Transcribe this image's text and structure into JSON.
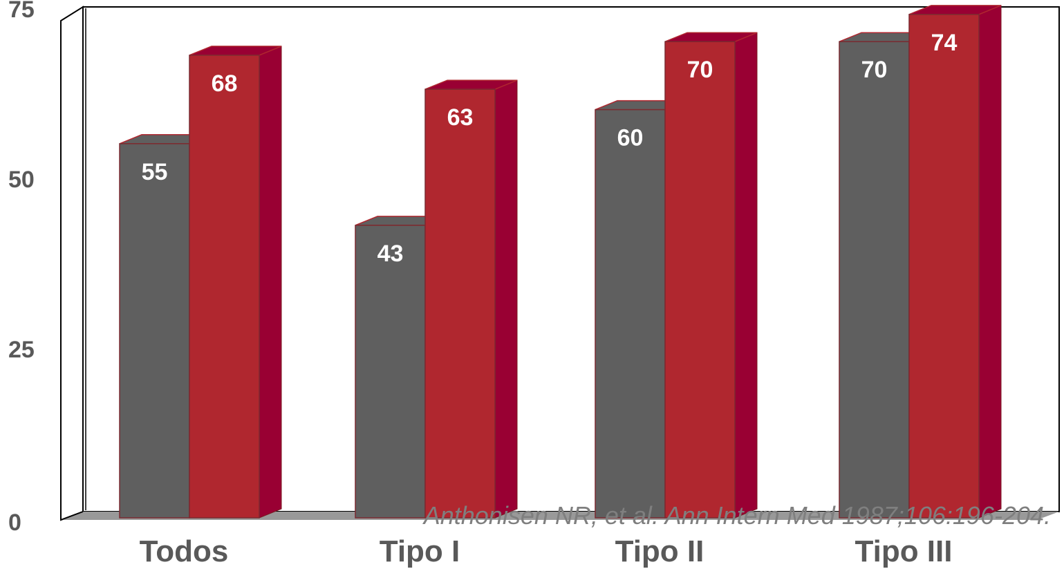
{
  "chart_data": {
    "type": "bar",
    "categories": [
      "Todos",
      "Tipo I",
      "Tipo II",
      "Tipo III"
    ],
    "series": [
      {
        "values": [
          55,
          43,
          60,
          70
        ]
      },
      {
        "values": [
          68,
          63,
          70,
          74
        ]
      }
    ],
    "ylim": [
      0,
      75
    ],
    "yticks": [
      "0",
      "25",
      "50",
      "75"
    ],
    "grid": false,
    "colors": {
      "series_1": "#5f5f5f",
      "series_2": "#b0272f",
      "series_2_side": "#990033",
      "floor": "#999999"
    }
  },
  "citation": "Anthonisen NR, et al. Ann Intern Med 1987;106:196-204."
}
